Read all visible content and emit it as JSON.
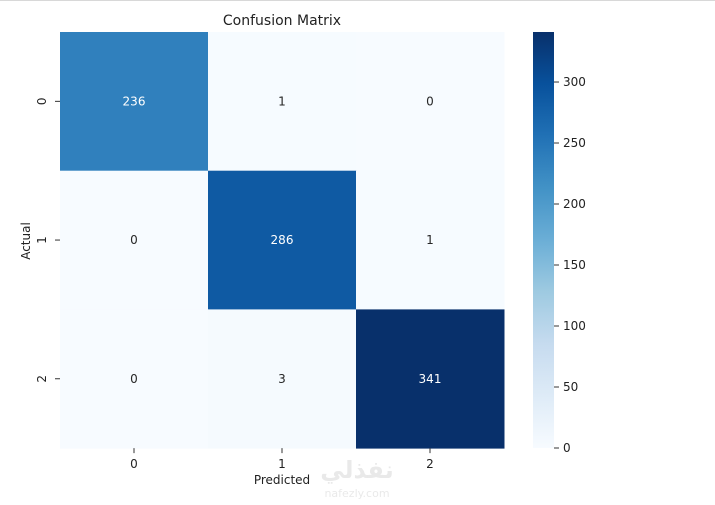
{
  "chart_data": {
    "type": "heatmap",
    "title": "Confusion Matrix",
    "xlabel": "Predicted",
    "ylabel": "Actual",
    "x_categories": [
      "0",
      "1",
      "2"
    ],
    "y_categories": [
      "0",
      "1",
      "2"
    ],
    "values": [
      [
        236,
        1,
        0
      ],
      [
        0,
        286,
        1
      ],
      [
        0,
        3,
        341
      ]
    ],
    "colormap": "Blues",
    "colorbar": {
      "range": [
        0,
        341
      ],
      "ticks": [
        0,
        50,
        100,
        150,
        200,
        250,
        300
      ],
      "tick_labels": [
        "0",
        "50",
        "100",
        "150",
        "200",
        "250",
        "300"
      ]
    },
    "annotate": true,
    "grid": false
  },
  "watermark": {
    "arabic": "نفذلي",
    "domain": "nafezly.com"
  },
  "colors": {
    "cmap_stops": [
      "#f7fbff",
      "#deebf7",
      "#c6dbef",
      "#9ecae1",
      "#6baed6",
      "#4292c6",
      "#2171b5",
      "#08519c",
      "#08306b"
    ],
    "light_text": "#ffffff",
    "dark_text": "#262626"
  }
}
